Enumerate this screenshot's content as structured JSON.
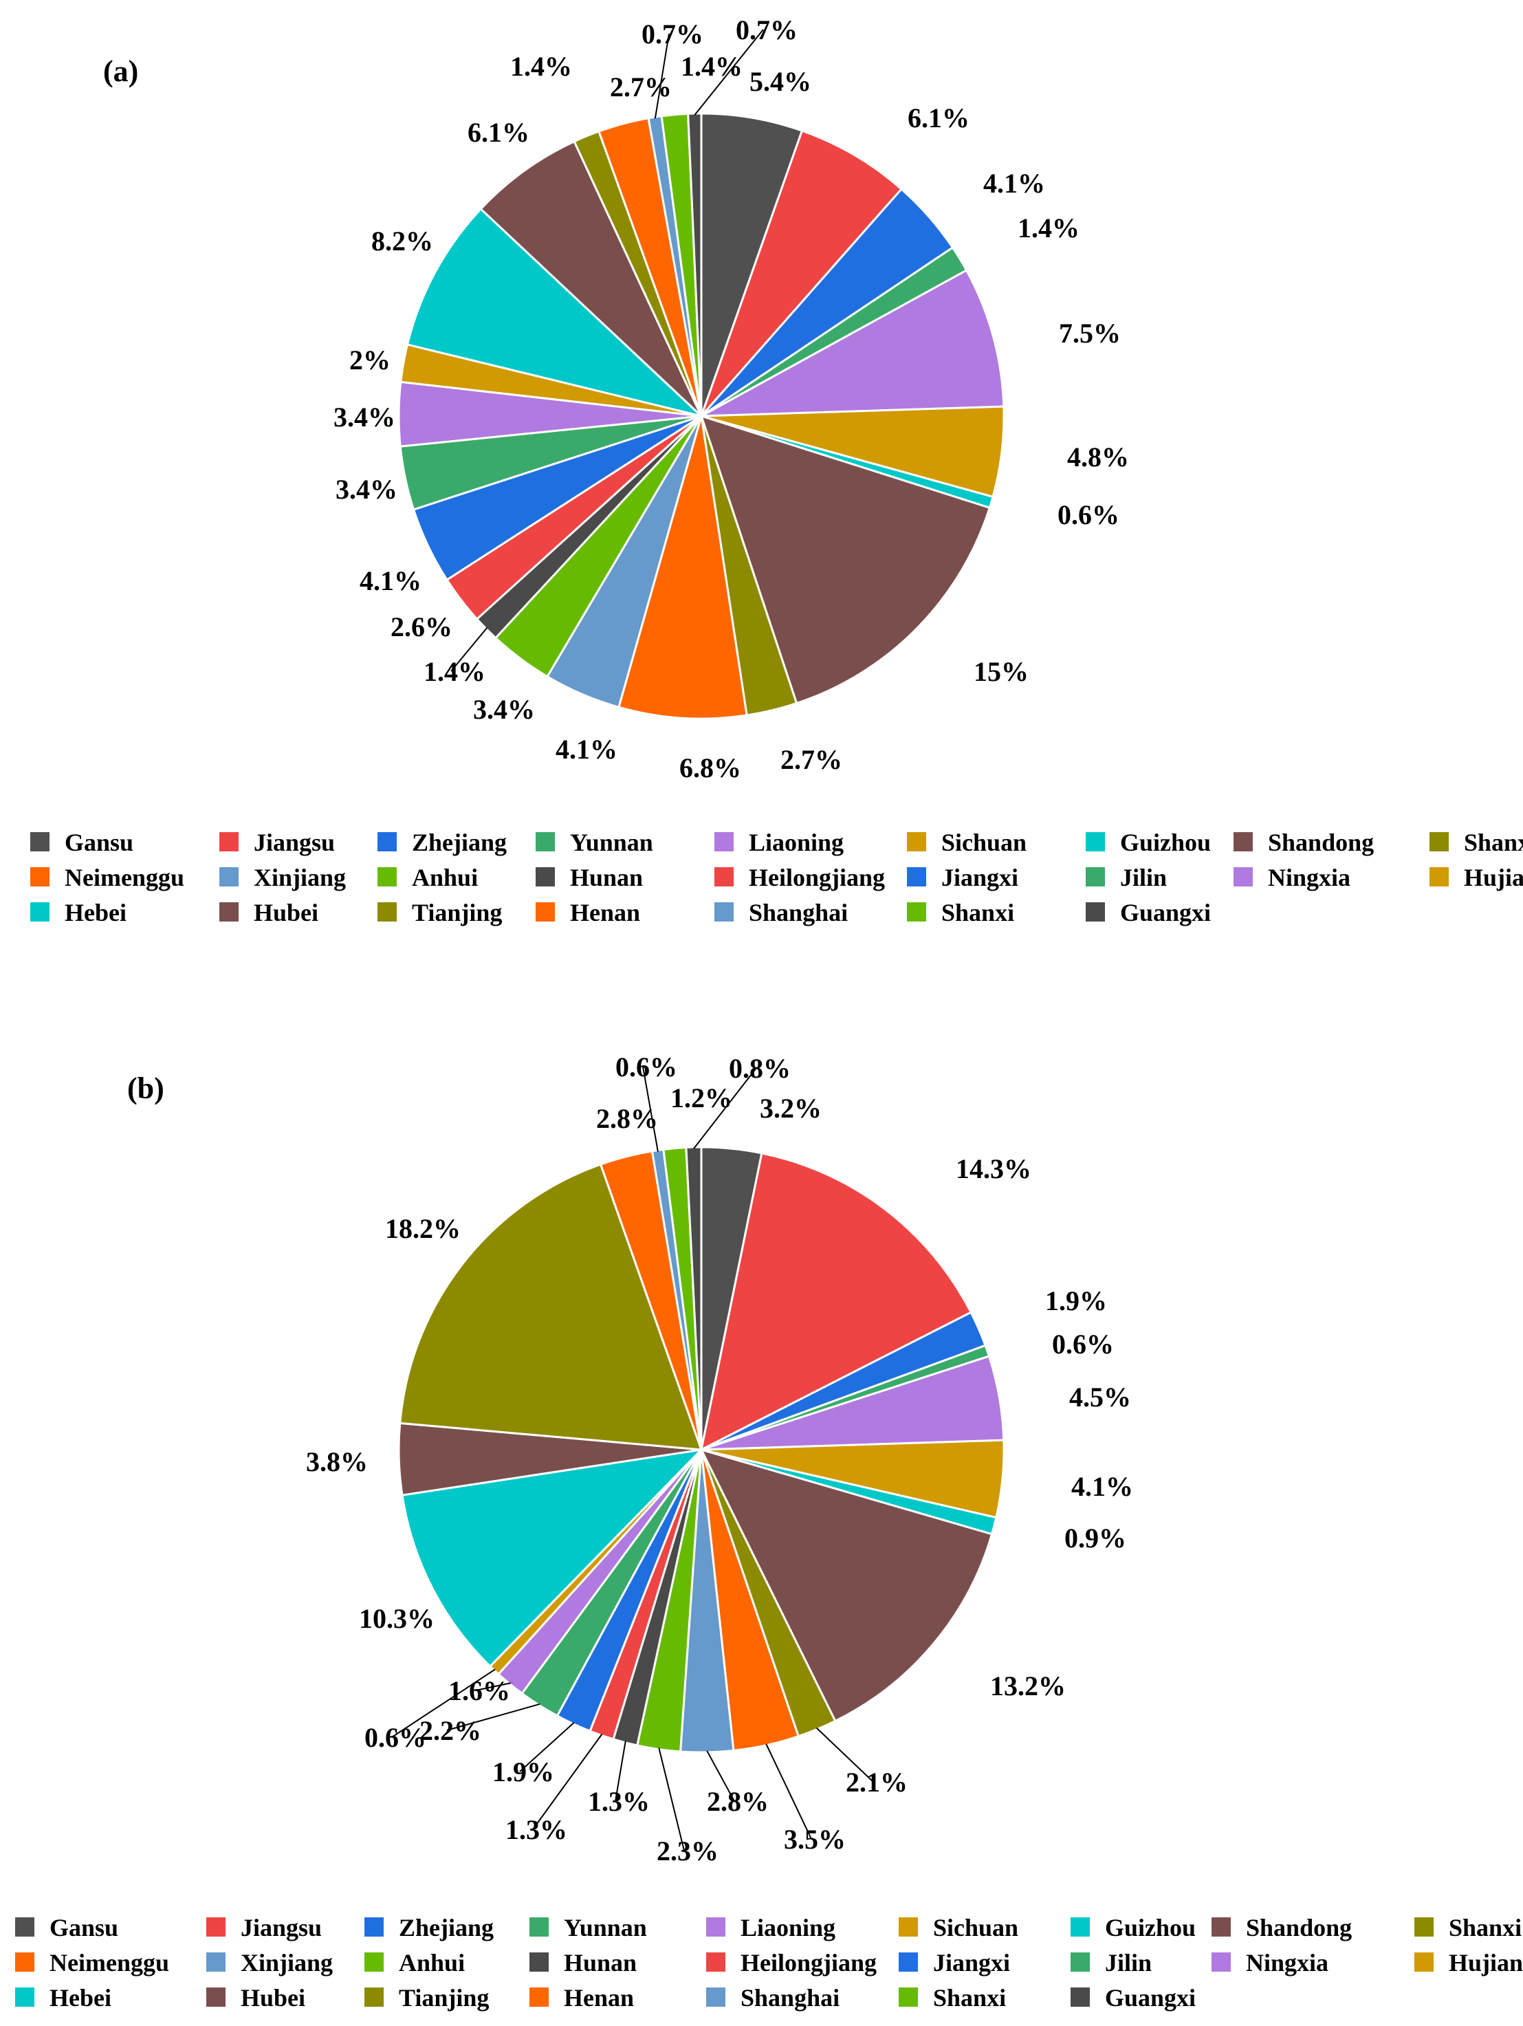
{
  "chart_data": [
    {
      "type": "pie",
      "title": "(a)",
      "unit": "%",
      "categories": [
        "Gansu",
        "Jiangsu",
        "Zhejiang",
        "Yunnan",
        "Liaoning",
        "Sichuan",
        "Guizhou",
        "Shandong",
        "Shanxi",
        "Neimenggu",
        "Xinjiang",
        "Anhui",
        "Hunan",
        "Heilongjiang",
        "Jiangxi",
        "Jilin",
        "Ningxia",
        "Hujian",
        "Hebei",
        "Hubei",
        "Tianjing",
        "Henan",
        "Shanghai",
        "Shanxi",
        "Guangxi"
      ],
      "values": [
        5.4,
        6.1,
        4.1,
        1.4,
        7.5,
        4.8,
        0.6,
        15,
        2.7,
        6.8,
        4.1,
        3.4,
        1.4,
        2.6,
        4.1,
        3.4,
        3.4,
        2,
        8.2,
        6.1,
        1.4,
        2.7,
        0.7,
        1.4,
        0.7
      ],
      "labels": [
        "5.4%",
        "6.1%",
        "4.1%",
        "1.4%",
        "7.5%",
        "4.8%",
        "0.6%",
        "15%",
        "2.7%",
        "6.8%",
        "4.1%",
        "3.4%",
        "1.4%",
        "2.6%",
        "4.1%",
        "3.4%",
        "3.4%",
        "2%",
        "8.2%",
        "6.1%",
        "1.4%",
        "2.7%",
        "0.7%",
        "1.4%",
        "0.7%"
      ]
    },
    {
      "type": "pie",
      "title": "(b)",
      "unit": "%",
      "categories": [
        "Gansu",
        "Jiangsu",
        "Zhejiang",
        "Yunnan",
        "Liaoning",
        "Sichuan",
        "Guizhou",
        "Shandong",
        "Shanxi",
        "Neimenggu",
        "Xinjiang",
        "Anhui",
        "Hunan",
        "Heilongjiang",
        "Jiangxi",
        "Jilin",
        "Ningxia",
        "Hujian",
        "Hebei",
        "Hubei",
        "Tianjing",
        "Henan",
        "Shanghai",
        "Shanxi",
        "Guangxi"
      ],
      "values": [
        3.2,
        14.3,
        1.9,
        0.6,
        4.5,
        4.1,
        0.9,
        13.2,
        2.1,
        3.5,
        2.8,
        2.3,
        1.3,
        1.3,
        1.9,
        2.2,
        1.6,
        0.6,
        10.3,
        3.8,
        18.2,
        2.8,
        0.6,
        1.2,
        0.8
      ],
      "labels": [
        "3.2%",
        "14.3%",
        "1.9%",
        "0.6%",
        "4.5%",
        "4.1%",
        "0.9%",
        "13.2%",
        "2.1%",
        "3.5%",
        "2.8%",
        "2.3%",
        "1.3%",
        "1.3%",
        "1.9%",
        "2.2%",
        "1.6%",
        "0.6%",
        "10.3%",
        "3.8%",
        "18.2%",
        "2.8%",
        "0.6%",
        "1.2%",
        "0.8%"
      ]
    }
  ],
  "legend": [
    "Gansu",
    "Jiangsu",
    "Zhejiang",
    "Yunnan",
    "Liaoning",
    "Sichuan",
    "Guizhou",
    "Shandong",
    "Shanxi",
    "Neimenggu",
    "Xinjiang",
    "Anhui",
    "Hunan",
    "Heilongjiang",
    "Jiangxi",
    "Jilin",
    "Ningxia",
    "Hujian",
    "Hebei",
    "Hubei",
    "Tianjing",
    "Henan",
    "Shanghai",
    "Shanxi",
    "Guangxi"
  ],
  "colors": [
    "#505050",
    "#ef4444",
    "#1f6fe0",
    "#3aaa6a",
    "#b07ae0",
    "#d19a00",
    "#00c8c8",
    "#7b4e4e",
    "#8d8a00",
    "#ff6600",
    "#6699cc",
    "#66bb00",
    "#4a4a4a",
    "#ef4444",
    "#1f6fe0",
    "#3aaa6a",
    "#b07ae0",
    "#d19a00",
    "#00c8c8",
    "#7b4e4e",
    "#8d8a00",
    "#ff6600",
    "#6699cc",
    "#66bb00",
    "#4a4a4a"
  ]
}
